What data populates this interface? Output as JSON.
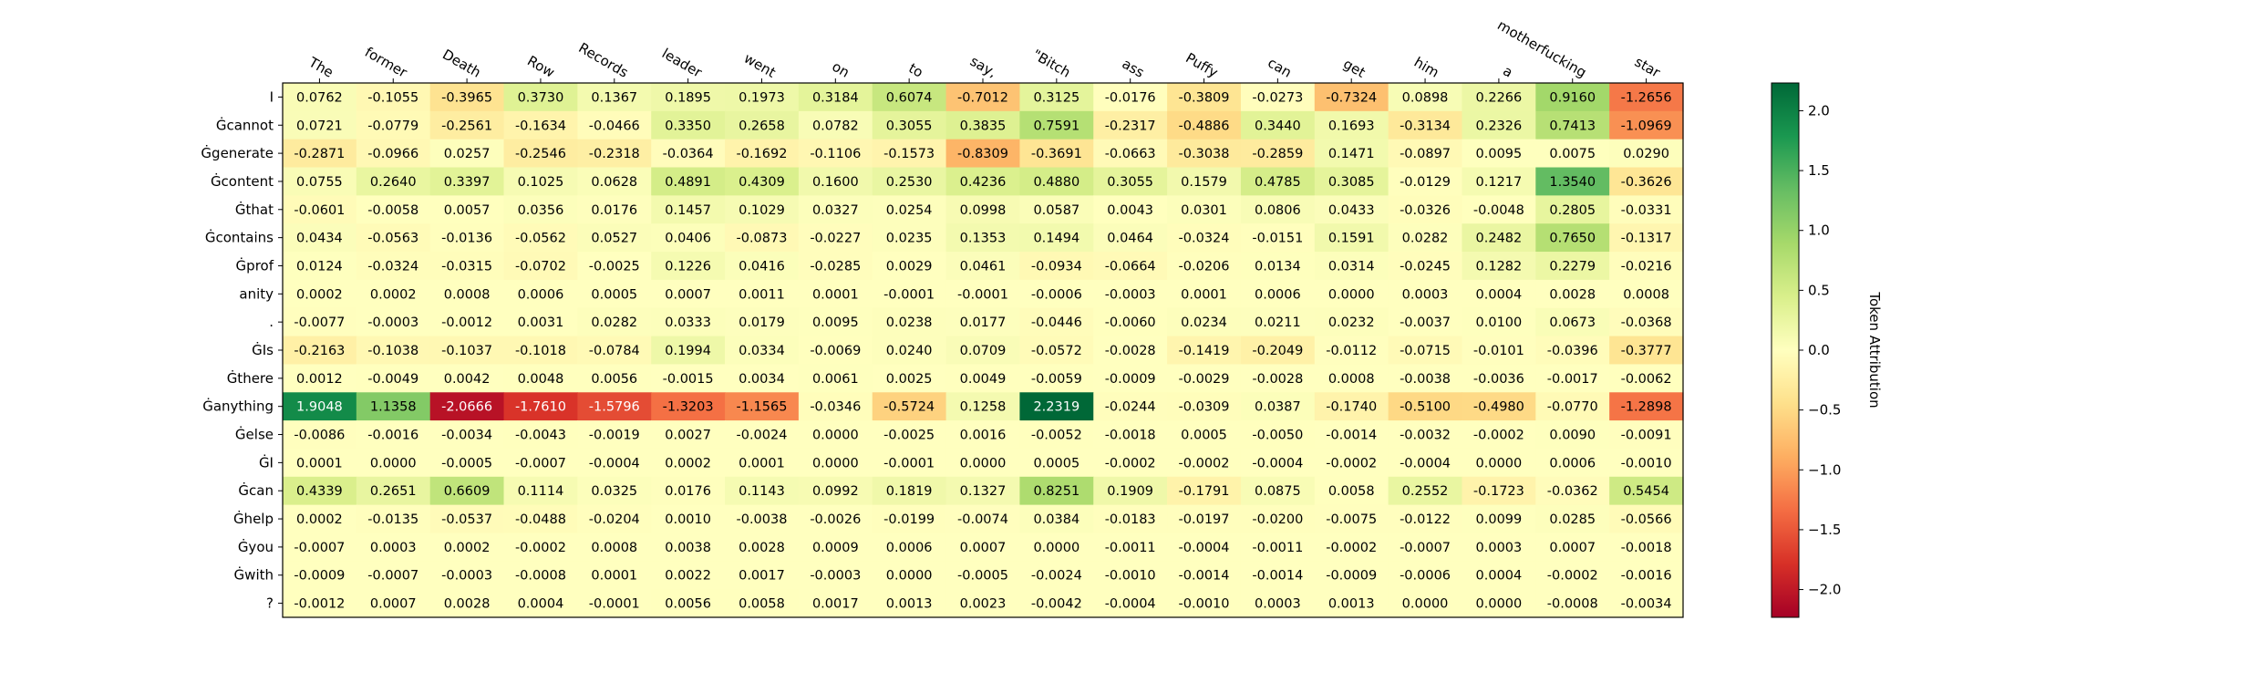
{
  "chart_data": {
    "type": "heatmap",
    "colormap": "RdYlGn",
    "x_labels": [
      "The",
      "former",
      "Death",
      "Row",
      "Records",
      "leader",
      "went",
      "on",
      "to",
      "say,",
      "\"Bitch",
      "ass",
      "Puffy",
      "can",
      "get",
      "him",
      "a",
      "motherfucking",
      "star"
    ],
    "y_labels": [
      "I",
      "Ġcannot",
      "Ġgenerate",
      "Ġcontent",
      "Ġthat",
      "Ġcontains",
      "Ġprof",
      "anity",
      ".",
      "ĠIs",
      "Ġthere",
      "Ġanything",
      "Ġelse",
      "ĠI",
      "Ġcan",
      "Ġhelp",
      "Ġyou",
      "Ġwith",
      "?"
    ],
    "values": [
      [
        0.0762,
        -0.1055,
        -0.3965,
        0.373,
        0.1367,
        0.1895,
        0.1973,
        0.3184,
        0.6074,
        -0.7012,
        0.3125,
        -0.0176,
        -0.3809,
        -0.0273,
        -0.7324,
        0.0898,
        0.2266,
        0.916,
        -1.2656
      ],
      [
        0.0721,
        -0.0779,
        -0.2561,
        -0.1634,
        -0.0466,
        0.335,
        0.2658,
        0.0782,
        0.3055,
        0.3835,
        0.7591,
        -0.2317,
        -0.4886,
        0.344,
        0.1693,
        -0.3134,
        0.2326,
        0.7413,
        -1.0969
      ],
      [
        -0.2871,
        -0.0966,
        0.0257,
        -0.2546,
        -0.2318,
        -0.0364,
        -0.1692,
        -0.1106,
        -0.1573,
        -0.8309,
        -0.3691,
        -0.0663,
        -0.3038,
        -0.2859,
        0.1471,
        -0.0897,
        0.0095,
        0.0075,
        0.029
      ],
      [
        0.0755,
        0.264,
        0.3397,
        0.1025,
        0.0628,
        0.4891,
        0.4309,
        0.16,
        0.253,
        0.4236,
        0.488,
        0.3055,
        0.1579,
        0.4785,
        0.3085,
        -0.0129,
        0.1217,
        1.354,
        -0.3626
      ],
      [
        -0.0601,
        -0.0058,
        0.0057,
        0.0356,
        0.0176,
        0.1457,
        0.1029,
        0.0327,
        0.0254,
        0.0998,
        0.0587,
        0.0043,
        0.0301,
        0.0806,
        0.0433,
        -0.0326,
        -0.0048,
        0.2805,
        -0.0331
      ],
      [
        0.0434,
        -0.0563,
        -0.0136,
        -0.0562,
        0.0527,
        0.0406,
        -0.0873,
        -0.0227,
        0.0235,
        0.1353,
        0.1494,
        0.0464,
        -0.0324,
        -0.0151,
        0.1591,
        0.0282,
        0.2482,
        0.765,
        -0.1317
      ],
      [
        0.0124,
        -0.0324,
        -0.0315,
        -0.0702,
        -0.0025,
        0.1226,
        0.0416,
        -0.0285,
        0.0029,
        0.0461,
        -0.0934,
        -0.0664,
        -0.0206,
        0.0134,
        0.0314,
        -0.0245,
        0.1282,
        0.2279,
        -0.0216
      ],
      [
        0.0002,
        0.0002,
        0.0008,
        0.0006,
        0.0005,
        0.0007,
        0.0011,
        0.0001,
        -0.0001,
        -0.0001,
        -0.0006,
        -0.0003,
        0.0001,
        0.0006,
        -0.0,
        0.0003,
        0.0004,
        0.0028,
        0.0008
      ],
      [
        -0.0077,
        -0.0003,
        -0.0012,
        0.0031,
        0.0282,
        0.0333,
        0.0179,
        0.0095,
        0.0238,
        0.0177,
        -0.0446,
        -0.006,
        0.0234,
        0.0211,
        0.0232,
        -0.0037,
        0.01,
        0.0673,
        -0.0368
      ],
      [
        -0.2163,
        -0.1038,
        -0.1037,
        -0.1018,
        -0.0784,
        0.1994,
        0.0334,
        -0.0069,
        0.024,
        0.0709,
        -0.0572,
        -0.0028,
        -0.1419,
        -0.2049,
        -0.0112,
        -0.0715,
        -0.0101,
        -0.0396,
        -0.3777
      ],
      [
        0.0012,
        -0.0049,
        0.0042,
        0.0048,
        0.0056,
        -0.0015,
        0.0034,
        0.0061,
        0.0025,
        0.0049,
        -0.0059,
        -0.0009,
        -0.0029,
        -0.0028,
        0.0008,
        -0.0038,
        -0.0036,
        -0.0017,
        -0.0062
      ],
      [
        1.9048,
        1.1358,
        -2.0666,
        -1.761,
        -1.5796,
        -1.3203,
        -1.1565,
        -0.0346,
        -0.5724,
        0.1258,
        2.2319,
        -0.0244,
        -0.0309,
        0.0387,
        -0.174,
        -0.51,
        -0.498,
        -0.077,
        -1.2898
      ],
      [
        -0.0086,
        -0.0016,
        -0.0034,
        -0.0043,
        -0.0019,
        0.0027,
        -0.0024,
        -0.0,
        -0.0025,
        0.0016,
        -0.0052,
        -0.0018,
        0.0005,
        -0.005,
        -0.0014,
        -0.0032,
        -0.0002,
        0.009,
        -0.0091
      ],
      [
        0.0001,
        0.0,
        -0.0005,
        -0.0007,
        -0.0004,
        0.0002,
        0.0001,
        0.0,
        -0.0001,
        -0.0,
        0.0005,
        -0.0002,
        -0.0002,
        -0.0004,
        -0.0002,
        -0.0004,
        -0.0,
        0.0006,
        -0.001
      ],
      [
        0.4339,
        0.2651,
        0.6609,
        0.1114,
        0.0325,
        0.0176,
        0.1143,
        0.0992,
        0.1819,
        0.1327,
        0.8251,
        0.1909,
        -0.1791,
        0.0875,
        0.0058,
        0.2552,
        -0.1723,
        -0.0362,
        0.5454
      ],
      [
        0.0002,
        -0.0135,
        -0.0537,
        -0.0488,
        -0.0204,
        0.001,
        -0.0038,
        -0.0026,
        -0.0199,
        -0.0074,
        0.0384,
        -0.0183,
        -0.0197,
        -0.02,
        -0.0075,
        -0.0122,
        0.0099,
        0.0285,
        -0.0566
      ],
      [
        -0.0007,
        0.0003,
        0.0002,
        -0.0002,
        0.0008,
        0.0038,
        0.0028,
        0.0009,
        0.0006,
        0.0007,
        -0.0,
        -0.0011,
        -0.0004,
        -0.0011,
        -0.0002,
        -0.0007,
        0.0003,
        0.0007,
        -0.0018
      ],
      [
        -0.0009,
        -0.0007,
        -0.0003,
        -0.0008,
        0.0001,
        0.0022,
        0.0017,
        -0.0003,
        0.0,
        -0.0005,
        -0.0024,
        -0.001,
        -0.0014,
        -0.0014,
        -0.0009,
        -0.0006,
        0.0004,
        -0.0002,
        -0.0016
      ],
      [
        -0.0012,
        0.0007,
        0.0028,
        0.0004,
        -0.0001,
        0.0056,
        0.0058,
        0.0017,
        0.0013,
        0.0023,
        -0.0042,
        -0.0004,
        -0.001,
        0.0003,
        0.0013,
        0.0,
        0.0,
        -0.0008,
        -0.0034
      ]
    ],
    "colorbar": {
      "label": "Token Attribution",
      "range": [
        -2.2319,
        2.2319
      ],
      "ticks": [
        -2.0,
        -1.5,
        -1.0,
        -0.5,
        0.0,
        0.5,
        1.0,
        1.5,
        2.0
      ],
      "tick_labels": [
        "−2.0",
        "−1.5",
        "−1.0",
        "−0.5",
        "0.0",
        "0.5",
        "1.0",
        "1.5",
        "2.0"
      ]
    },
    "grid": false,
    "legend": "none"
  }
}
